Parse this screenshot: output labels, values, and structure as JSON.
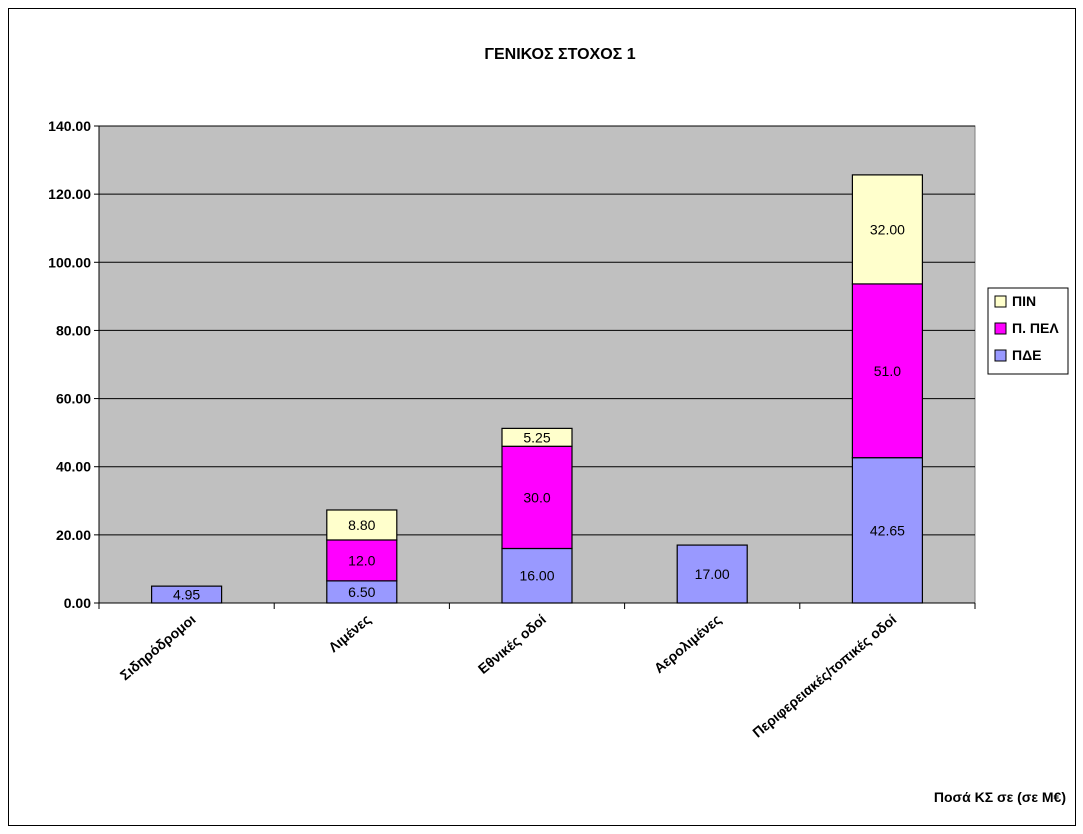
{
  "chart_data": {
    "type": "bar",
    "stacked": true,
    "title": "ΓΕΝΙΚΟΣ ΣΤΟΧΟΣ 1",
    "xlabel": "Ποσά ΚΣ σε (σε Μ€)",
    "ylabel": "",
    "ylim": [
      0,
      140
    ],
    "yticks": [
      "0.00",
      "20.00",
      "40.00",
      "60.00",
      "80.00",
      "100.00",
      "120.00",
      "140.00"
    ],
    "grid": true,
    "legend_position": "right",
    "categories": [
      "Σιδηρόδρομοι",
      "Λιμένες",
      "Εθνικές οδοί",
      "Αερολιμένες",
      "Περιφερειακές/τοπικές οδοί"
    ],
    "series": [
      {
        "name": "ΠΔΕ",
        "color": "#9999ff",
        "values": [
          4.95,
          6.5,
          16.0,
          17.0,
          42.65
        ],
        "labels": [
          "4.95",
          "6.50",
          "16.00",
          "17.00",
          "42.65"
        ]
      },
      {
        "name": "Π. ΠΕΛ",
        "color": "#ff00ff",
        "values": [
          null,
          12.0,
          30.0,
          null,
          51.0
        ],
        "labels": [
          "",
          "12.0",
          "30.0",
          "",
          "51.0"
        ]
      },
      {
        "name": "ΠΙΝ",
        "color": "#ffffcc",
        "values": [
          null,
          8.8,
          5.25,
          null,
          32.0
        ],
        "labels": [
          "",
          "8.80",
          "5.25",
          "",
          "32.00"
        ]
      }
    ],
    "legend_order": [
      "ΠΙΝ",
      "Π. ΠΕΛ",
      "ΠΔΕ"
    ],
    "plot_background": "#c0c0c0"
  }
}
